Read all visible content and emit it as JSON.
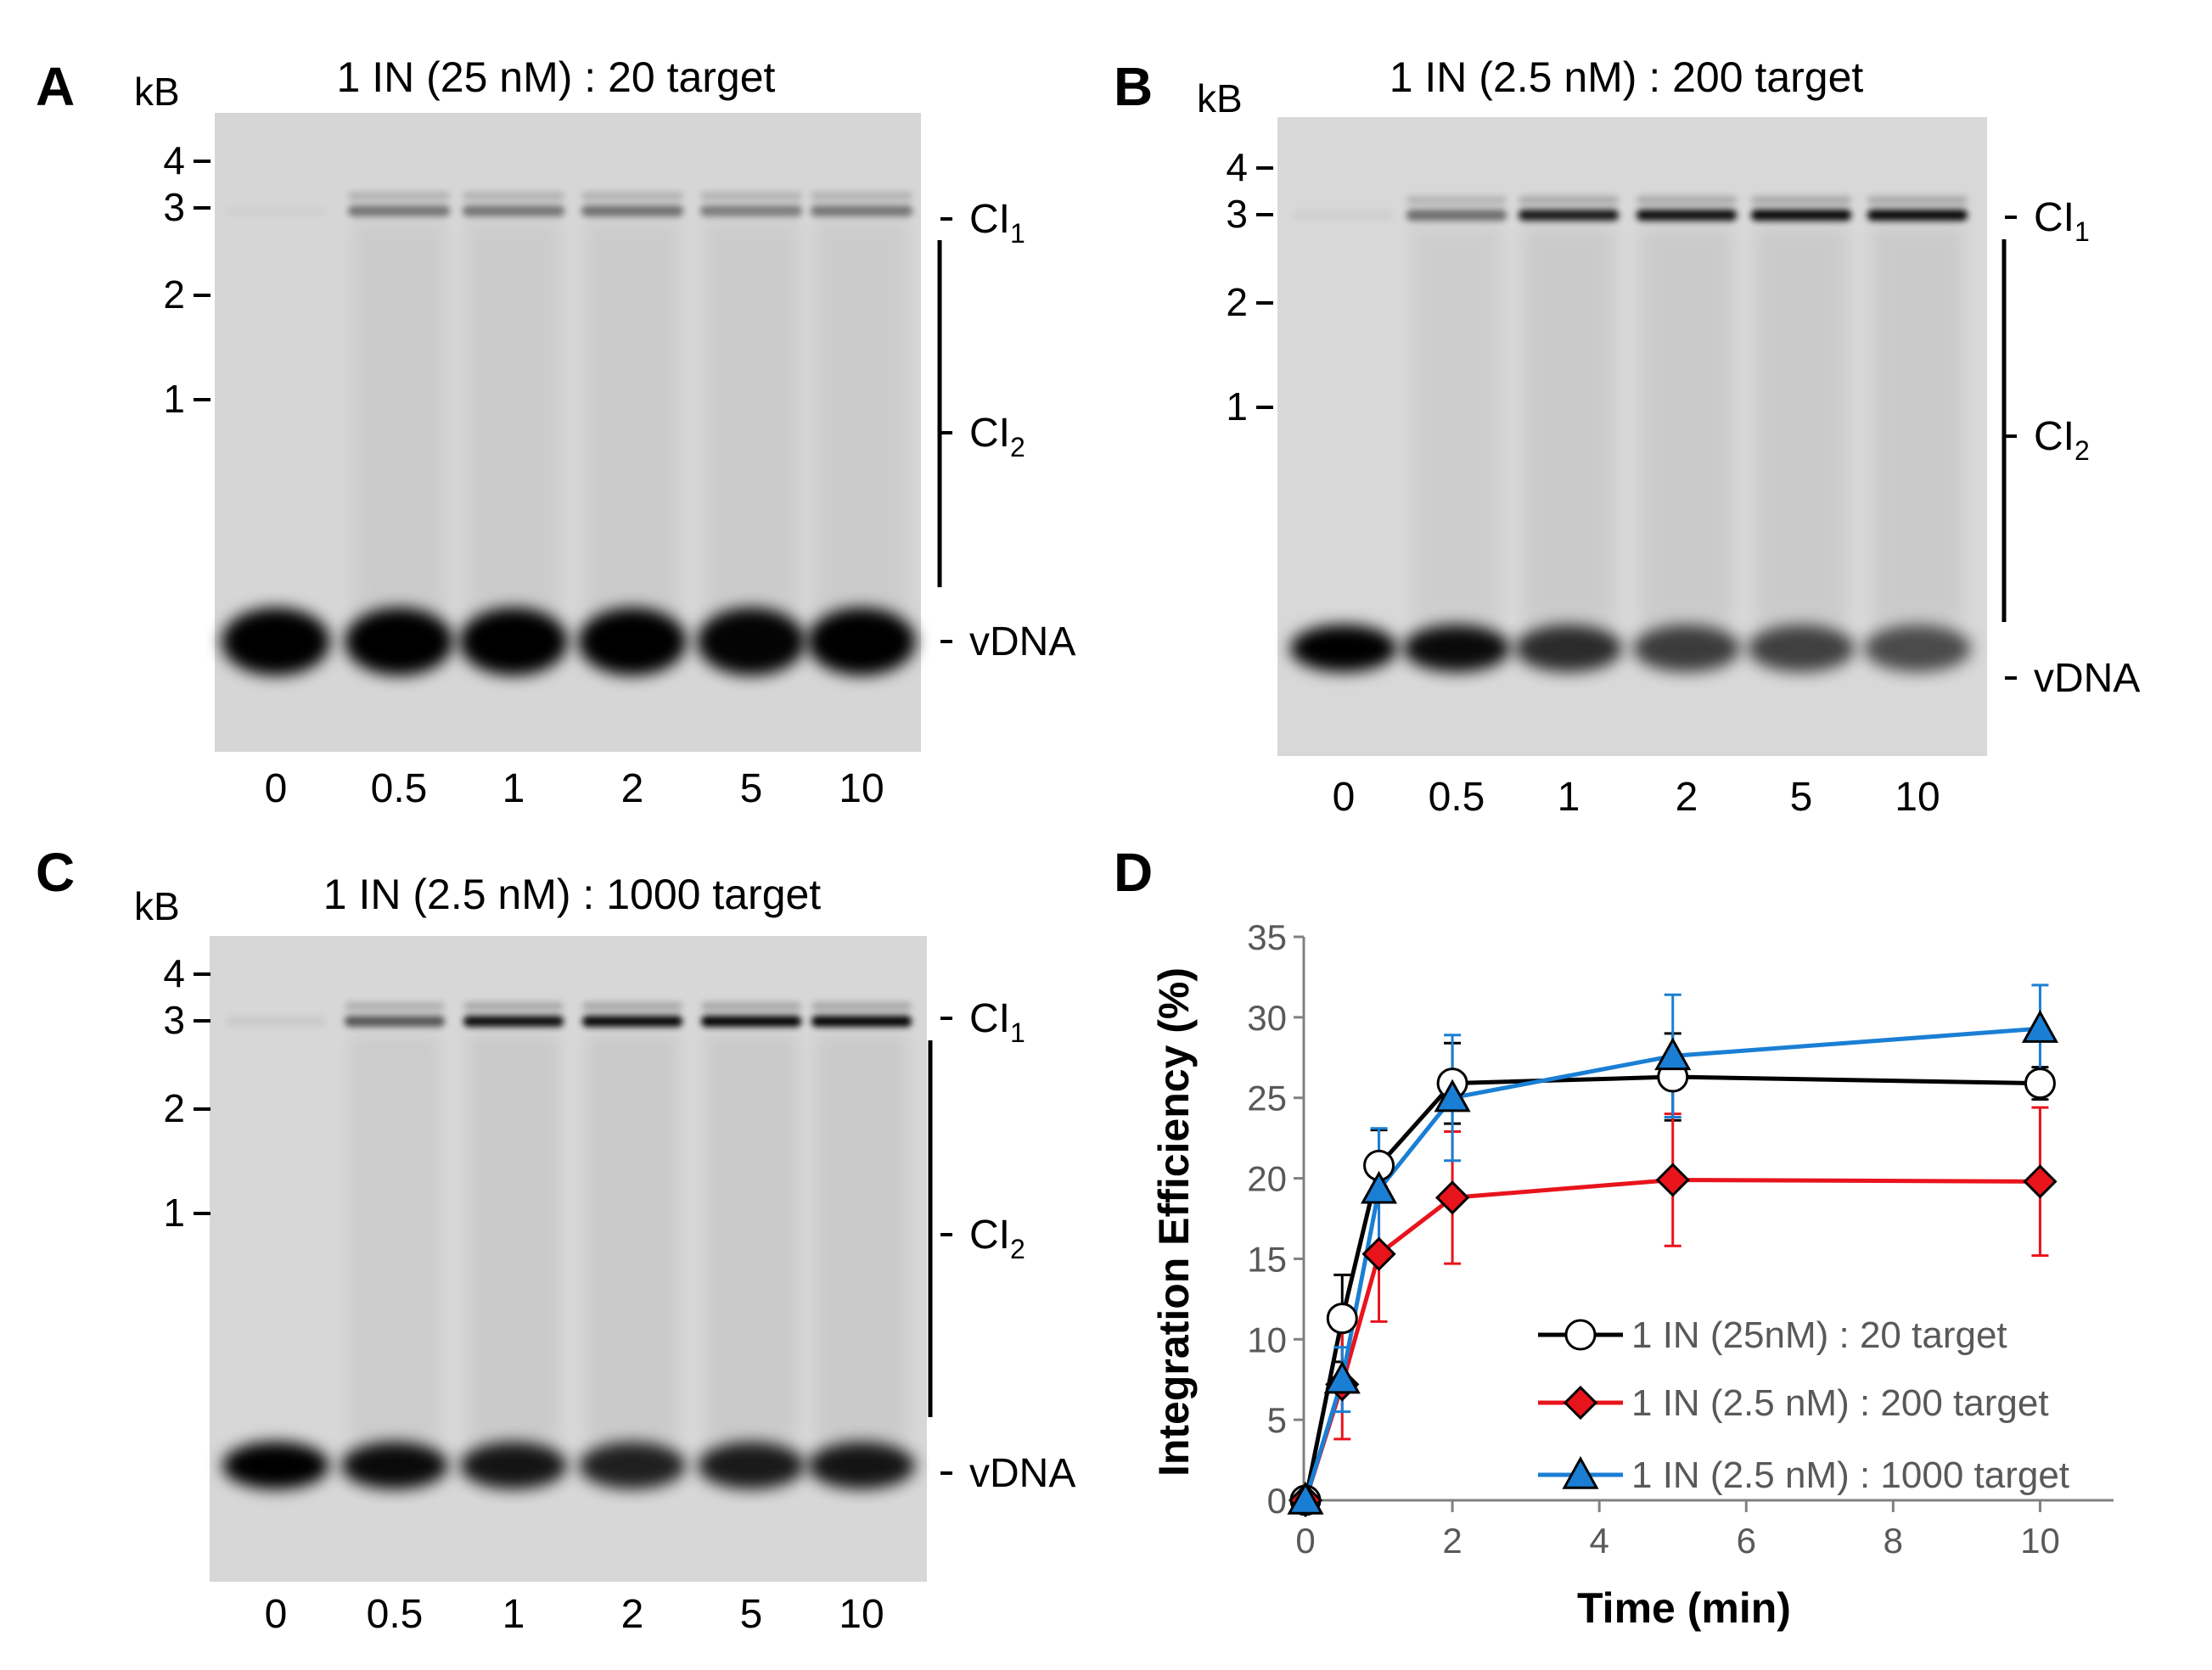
{
  "panels": [
    {
      "letter": "A",
      "title": "1 IN (25 nM) : 20 target",
      "kb_label": "kB",
      "markers": [
        "4",
        "3",
        "2",
        "1"
      ],
      "band_labels": {
        "ci1": "CI",
        "ci1_sub": "1",
        "ci2": "CI",
        "ci2_sub": "2",
        "vdna": "vDNA"
      },
      "lanes": [
        "0",
        "0.5",
        "1",
        "2",
        "5",
        "10"
      ],
      "ci1_intensity": [
        0.02,
        0.45,
        0.45,
        0.48,
        0.42,
        0.45
      ],
      "vdna_intensity": [
        1.0,
        1.0,
        1.0,
        1.0,
        0.98,
        1.0
      ]
    },
    {
      "letter": "B",
      "title": "1 IN (2.5 nM) : 200 target",
      "kb_label": "kB",
      "markers": [
        "4",
        "3",
        "2",
        "1"
      ],
      "band_labels": {
        "ci1": "CI",
        "ci1_sub": "1",
        "ci2": "CI",
        "ci2_sub": "2",
        "vdna": "vDNA"
      },
      "lanes": [
        "0",
        "0.5",
        "1",
        "2",
        "5",
        "10"
      ],
      "ci1_intensity": [
        0.03,
        0.5,
        0.9,
        0.95,
        0.98,
        0.98
      ],
      "vdna_intensity": [
        1.0,
        0.95,
        0.8,
        0.72,
        0.7,
        0.65
      ]
    },
    {
      "letter": "C",
      "title": "1 IN (2.5 nM) : 1000 target",
      "kb_label": "kB",
      "markers": [
        "4",
        "3",
        "2",
        "1"
      ],
      "band_labels": {
        "ci1": "CI",
        "ci1_sub": "1",
        "ci2": "CI",
        "ci2_sub": "2",
        "vdna": "vDNA"
      },
      "lanes": [
        "0",
        "0.5",
        "1",
        "2",
        "5",
        "10"
      ],
      "ci1_intensity": [
        0.05,
        0.6,
        0.95,
        0.98,
        1.0,
        1.0
      ],
      "vdna_intensity": [
        1.0,
        0.95,
        0.9,
        0.85,
        0.88,
        0.9
      ]
    }
  ],
  "panel_d_letter": "D",
  "chart_data": {
    "type": "line",
    "title": "",
    "xlabel": "Time (min)",
    "ylabel": "Integration Efficiency (%)",
    "xlim": [
      0,
      11
    ],
    "ylim": [
      0,
      35
    ],
    "xticks": [
      "0",
      "2",
      "4",
      "6",
      "8",
      "10"
    ],
    "yticks": [
      "0",
      "5",
      "10",
      "15",
      "20",
      "25",
      "30",
      "35"
    ],
    "grid": false,
    "legend_position": "bottom-right",
    "series": [
      {
        "name": "1 IN (25nM) : 20 target",
        "color": "#000000",
        "marker": "circle",
        "x": [
          0,
          0.5,
          1,
          2,
          5,
          10
        ],
        "y": [
          0,
          11.3,
          20.8,
          25.9,
          26.3,
          25.9
        ],
        "err": [
          0.3,
          2.7,
          2.2,
          2.5,
          2.7,
          1.0
        ]
      },
      {
        "name": "1 IN (2.5 nM) : 200 target",
        "color": "#e8141c",
        "marker": "diamond",
        "x": [
          0,
          0.5,
          1,
          2,
          5,
          10
        ],
        "y": [
          0,
          7.2,
          15.3,
          18.8,
          19.9,
          19.8
        ],
        "err": [
          0.3,
          3.4,
          4.2,
          4.1,
          4.1,
          4.6
        ]
      },
      {
        "name": "1 IN (2.5 nM) : 1000 target",
        "color": "#1a7fd4",
        "marker": "triangle",
        "x": [
          0,
          0.5,
          1,
          2,
          5,
          10
        ],
        "y": [
          0,
          7.5,
          19.3,
          25.0,
          27.6,
          29.3
        ],
        "err": [
          0.3,
          2.0,
          3.8,
          3.9,
          3.8,
          2.7
        ]
      }
    ]
  }
}
